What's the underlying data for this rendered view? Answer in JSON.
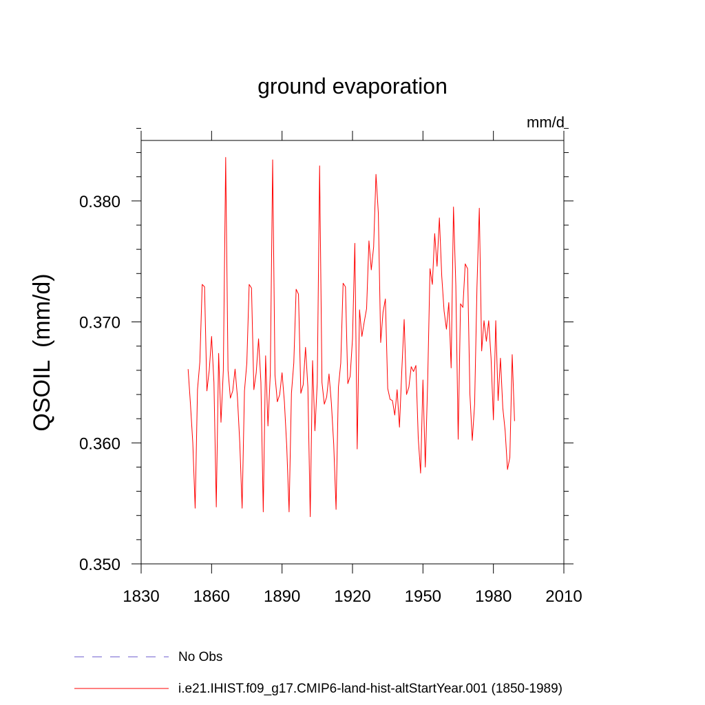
{
  "chart_data": {
    "type": "line",
    "title": "ground evaporation",
    "units": "mm/d",
    "ylabel": "QSOIL  (mm/d)",
    "xlabel": "",
    "xlim": [
      1830,
      2010
    ],
    "ylim": [
      0.35,
      0.385
    ],
    "x_ticks": [
      1830,
      1860,
      1890,
      1920,
      1950,
      1980,
      2010
    ],
    "x_tick_labels": [
      "1830",
      "1860",
      "1890",
      "1920",
      "1950",
      "1980",
      "2010"
    ],
    "y_ticks": [
      0.35,
      0.36,
      0.37,
      0.38
    ],
    "y_tick_labels": [
      "0.350",
      "0.360",
      "0.370",
      "0.380"
    ],
    "grid": false,
    "legend_position": "bottom-left",
    "legend": [
      {
        "label": "No Obs",
        "color": "#6a5acd",
        "style": "dashed"
      },
      {
        "label": "i.e21.IHIST.f09_g17.CMIP6-land-hist-altStartYear.001 (1850-1989)",
        "color": "#ff0000",
        "style": "solid"
      }
    ],
    "series": [
      {
        "name": "i.e21.IHIST.f09_g17.CMIP6-land-hist-altStartYear.001 (1850-1989)",
        "color": "#ff0000",
        "x": [
          1850,
          1851,
          1852,
          1853,
          1854,
          1855,
          1856,
          1857,
          1858,
          1859,
          1860,
          1861,
          1862,
          1863,
          1864,
          1865,
          1866,
          1867,
          1868,
          1869,
          1870,
          1871,
          1872,
          1873,
          1874,
          1875,
          1876,
          1877,
          1878,
          1879,
          1880,
          1881,
          1882,
          1883,
          1884,
          1885,
          1886,
          1887,
          1888,
          1889,
          1890,
          1891,
          1892,
          1893,
          1894,
          1895,
          1896,
          1897,
          1898,
          1899,
          1900,
          1901,
          1902,
          1903,
          1904,
          1905,
          1906,
          1907,
          1908,
          1909,
          1910,
          1911,
          1912,
          1913,
          1914,
          1915,
          1916,
          1917,
          1918,
          1919,
          1920,
          1921,
          1922,
          1923,
          1924,
          1925,
          1926,
          1927,
          1928,
          1929,
          1930,
          1931,
          1932,
          1933,
          1934,
          1935,
          1936,
          1937,
          1938,
          1939,
          1940,
          1941,
          1942,
          1943,
          1944,
          1945,
          1946,
          1947,
          1948,
          1949,
          1950,
          1951,
          1952,
          1953,
          1954,
          1955,
          1956,
          1957,
          1958,
          1959,
          1960,
          1961,
          1962,
          1963,
          1964,
          1965,
          1966,
          1967,
          1968,
          1969,
          1970,
          1971,
          1972,
          1973,
          1974,
          1975,
          1976,
          1977,
          1978,
          1979,
          1980,
          1981,
          1982,
          1983,
          1984,
          1985,
          1986,
          1987,
          1988,
          1989
        ],
        "values": [
          0.3661,
          0.3632,
          0.36,
          0.3546,
          0.3644,
          0.3667,
          0.3731,
          0.3729,
          0.3643,
          0.366,
          0.3688,
          0.365,
          0.3547,
          0.3674,
          0.3617,
          0.366,
          0.3836,
          0.366,
          0.3637,
          0.3643,
          0.3661,
          0.3638,
          0.36,
          0.3546,
          0.3643,
          0.3666,
          0.3731,
          0.3728,
          0.3644,
          0.3658,
          0.3686,
          0.365,
          0.3543,
          0.3672,
          0.3614,
          0.3657,
          0.3834,
          0.3656,
          0.3634,
          0.364,
          0.3658,
          0.3634,
          0.3597,
          0.3543,
          0.3641,
          0.3666,
          0.3727,
          0.3723,
          0.3641,
          0.3648,
          0.3679,
          0.3646,
          0.3539,
          0.3668,
          0.361,
          0.365,
          0.3829,
          0.365,
          0.3632,
          0.3638,
          0.3657,
          0.3633,
          0.3599,
          0.3545,
          0.3646,
          0.3666,
          0.3732,
          0.3729,
          0.3649,
          0.3655,
          0.3686,
          0.3765,
          0.3595,
          0.371,
          0.3688,
          0.37,
          0.3711,
          0.3767,
          0.3743,
          0.3762,
          0.3822,
          0.379,
          0.3683,
          0.3708,
          0.3719,
          0.3645,
          0.3636,
          0.3635,
          0.3623,
          0.3644,
          0.3613,
          0.366,
          0.3702,
          0.364,
          0.3646,
          0.3663,
          0.3659,
          0.3664,
          0.3604,
          0.3575,
          0.3652,
          0.358,
          0.365,
          0.3744,
          0.3731,
          0.3773,
          0.3746,
          0.3786,
          0.3738,
          0.3709,
          0.3694,
          0.3716,
          0.3662,
          0.3795,
          0.373,
          0.3603,
          0.3715,
          0.3712,
          0.3748,
          0.3744,
          0.364,
          0.3602,
          0.3632,
          0.3729,
          0.3794,
          0.3676,
          0.3701,
          0.3684,
          0.3701,
          0.367,
          0.3619,
          0.3701,
          0.3635,
          0.367,
          0.3629,
          0.361,
          0.3578,
          0.3588,
          0.3673,
          0.3618
        ]
      }
    ]
  }
}
